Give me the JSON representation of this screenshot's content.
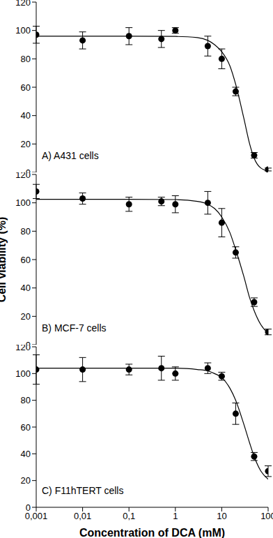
{
  "chart_data": [
    {
      "type": "scatter",
      "title": "A) A431 cells",
      "x": [
        0.001,
        0.01,
        0.1,
        0.5,
        1,
        5,
        10,
        20,
        50,
        100
      ],
      "values": [
        97,
        93,
        96,
        94,
        100,
        89,
        80,
        57,
        12,
        2
      ],
      "errors": [
        6,
        6,
        6,
        6,
        2,
        7,
        7,
        3,
        2,
        1
      ],
      "fit": {
        "x": [
          0.001,
          0.01,
          0.1,
          1,
          3,
          5,
          7,
          10,
          15,
          20,
          30,
          40,
          50,
          70,
          100
        ],
        "values": [
          96,
          96,
          96,
          95.8,
          95,
          93,
          90,
          85,
          75,
          62,
          38,
          20,
          10,
          3,
          1
        ]
      },
      "xlim": [
        0.001,
        100
      ],
      "xticks": [
        {
          "value": 0.001,
          "label": "0,001"
        },
        {
          "value": 0.01,
          "label": "0,01"
        },
        {
          "value": 0.1,
          "label": "0,1"
        },
        1,
        10,
        100
      ],
      "ylim": [
        0,
        120
      ],
      "yticks": [
        0,
        20,
        40,
        60,
        80,
        100,
        120
      ],
      "log": "x",
      "tick_labels": "y",
      "color": "#000000",
      "marker": "circle",
      "line_style": "solid"
    },
    {
      "type": "scatter",
      "title": "B) MCF-7 cells",
      "y_label": "Cell viability (%)",
      "x": [
        0.001,
        0.01,
        0.1,
        0.5,
        1,
        5,
        10,
        20,
        50,
        100
      ],
      "values": [
        108,
        103,
        99,
        101,
        99,
        100,
        86,
        65,
        30,
        9
      ],
      "errors": [
        5,
        4,
        5,
        3,
        6,
        8,
        10,
        4,
        3,
        2
      ],
      "fit": {
        "x": [
          0.001,
          0.01,
          0.1,
          1,
          3,
          5,
          7,
          10,
          15,
          20,
          30,
          40,
          50,
          70,
          100
        ],
        "values": [
          102.5,
          102.5,
          102.5,
          102.3,
          101,
          99,
          96,
          90,
          79,
          67,
          48,
          33,
          24,
          14,
          8
        ]
      },
      "xlim": [
        0.001,
        100
      ],
      "xticks": [
        {
          "value": 0.001,
          "label": "0,001"
        },
        {
          "value": 0.01,
          "label": "0,01"
        },
        {
          "value": 0.1,
          "label": "0,1"
        },
        1,
        10,
        100
      ],
      "ylim": [
        0,
        120
      ],
      "yticks": [
        0,
        20,
        40,
        60,
        80,
        100,
        120
      ],
      "log": "x",
      "tick_labels": "y",
      "color": "#000000",
      "marker": "circle",
      "line_style": "solid"
    },
    {
      "type": "scatter",
      "title": "C) F11hTERT cells",
      "x_label": "Concentration of DCA (mM)",
      "x": [
        0.001,
        0.01,
        0.1,
        0.5,
        1,
        5,
        10,
        20,
        50,
        100
      ],
      "values": [
        103,
        103,
        103,
        104,
        100,
        104,
        98,
        70,
        38,
        27
      ],
      "errors": [
        11,
        9,
        4,
        9,
        5,
        4,
        3,
        8,
        3,
        4
      ],
      "fit": {
        "x": [
          0.001,
          0.01,
          0.1,
          1,
          3,
          5,
          7,
          10,
          15,
          20,
          30,
          40,
          50,
          70,
          100
        ],
        "values": [
          104,
          104,
          104,
          104,
          103,
          102,
          100,
          97,
          89,
          80,
          62,
          48,
          38,
          27,
          21
        ]
      },
      "xlim": [
        0.001,
        100
      ],
      "xticks": [
        {
          "value": 0.001,
          "label": "0,001"
        },
        {
          "value": 0.01,
          "label": "0,01"
        },
        {
          "value": 0.1,
          "label": "0,1"
        },
        1,
        10,
        100
      ],
      "ylim": [
        0,
        120
      ],
      "yticks": [
        0,
        20,
        40,
        60,
        80,
        100,
        120
      ],
      "log": "x",
      "color": "#000000",
      "marker": "circle",
      "line_style": "solid"
    }
  ]
}
